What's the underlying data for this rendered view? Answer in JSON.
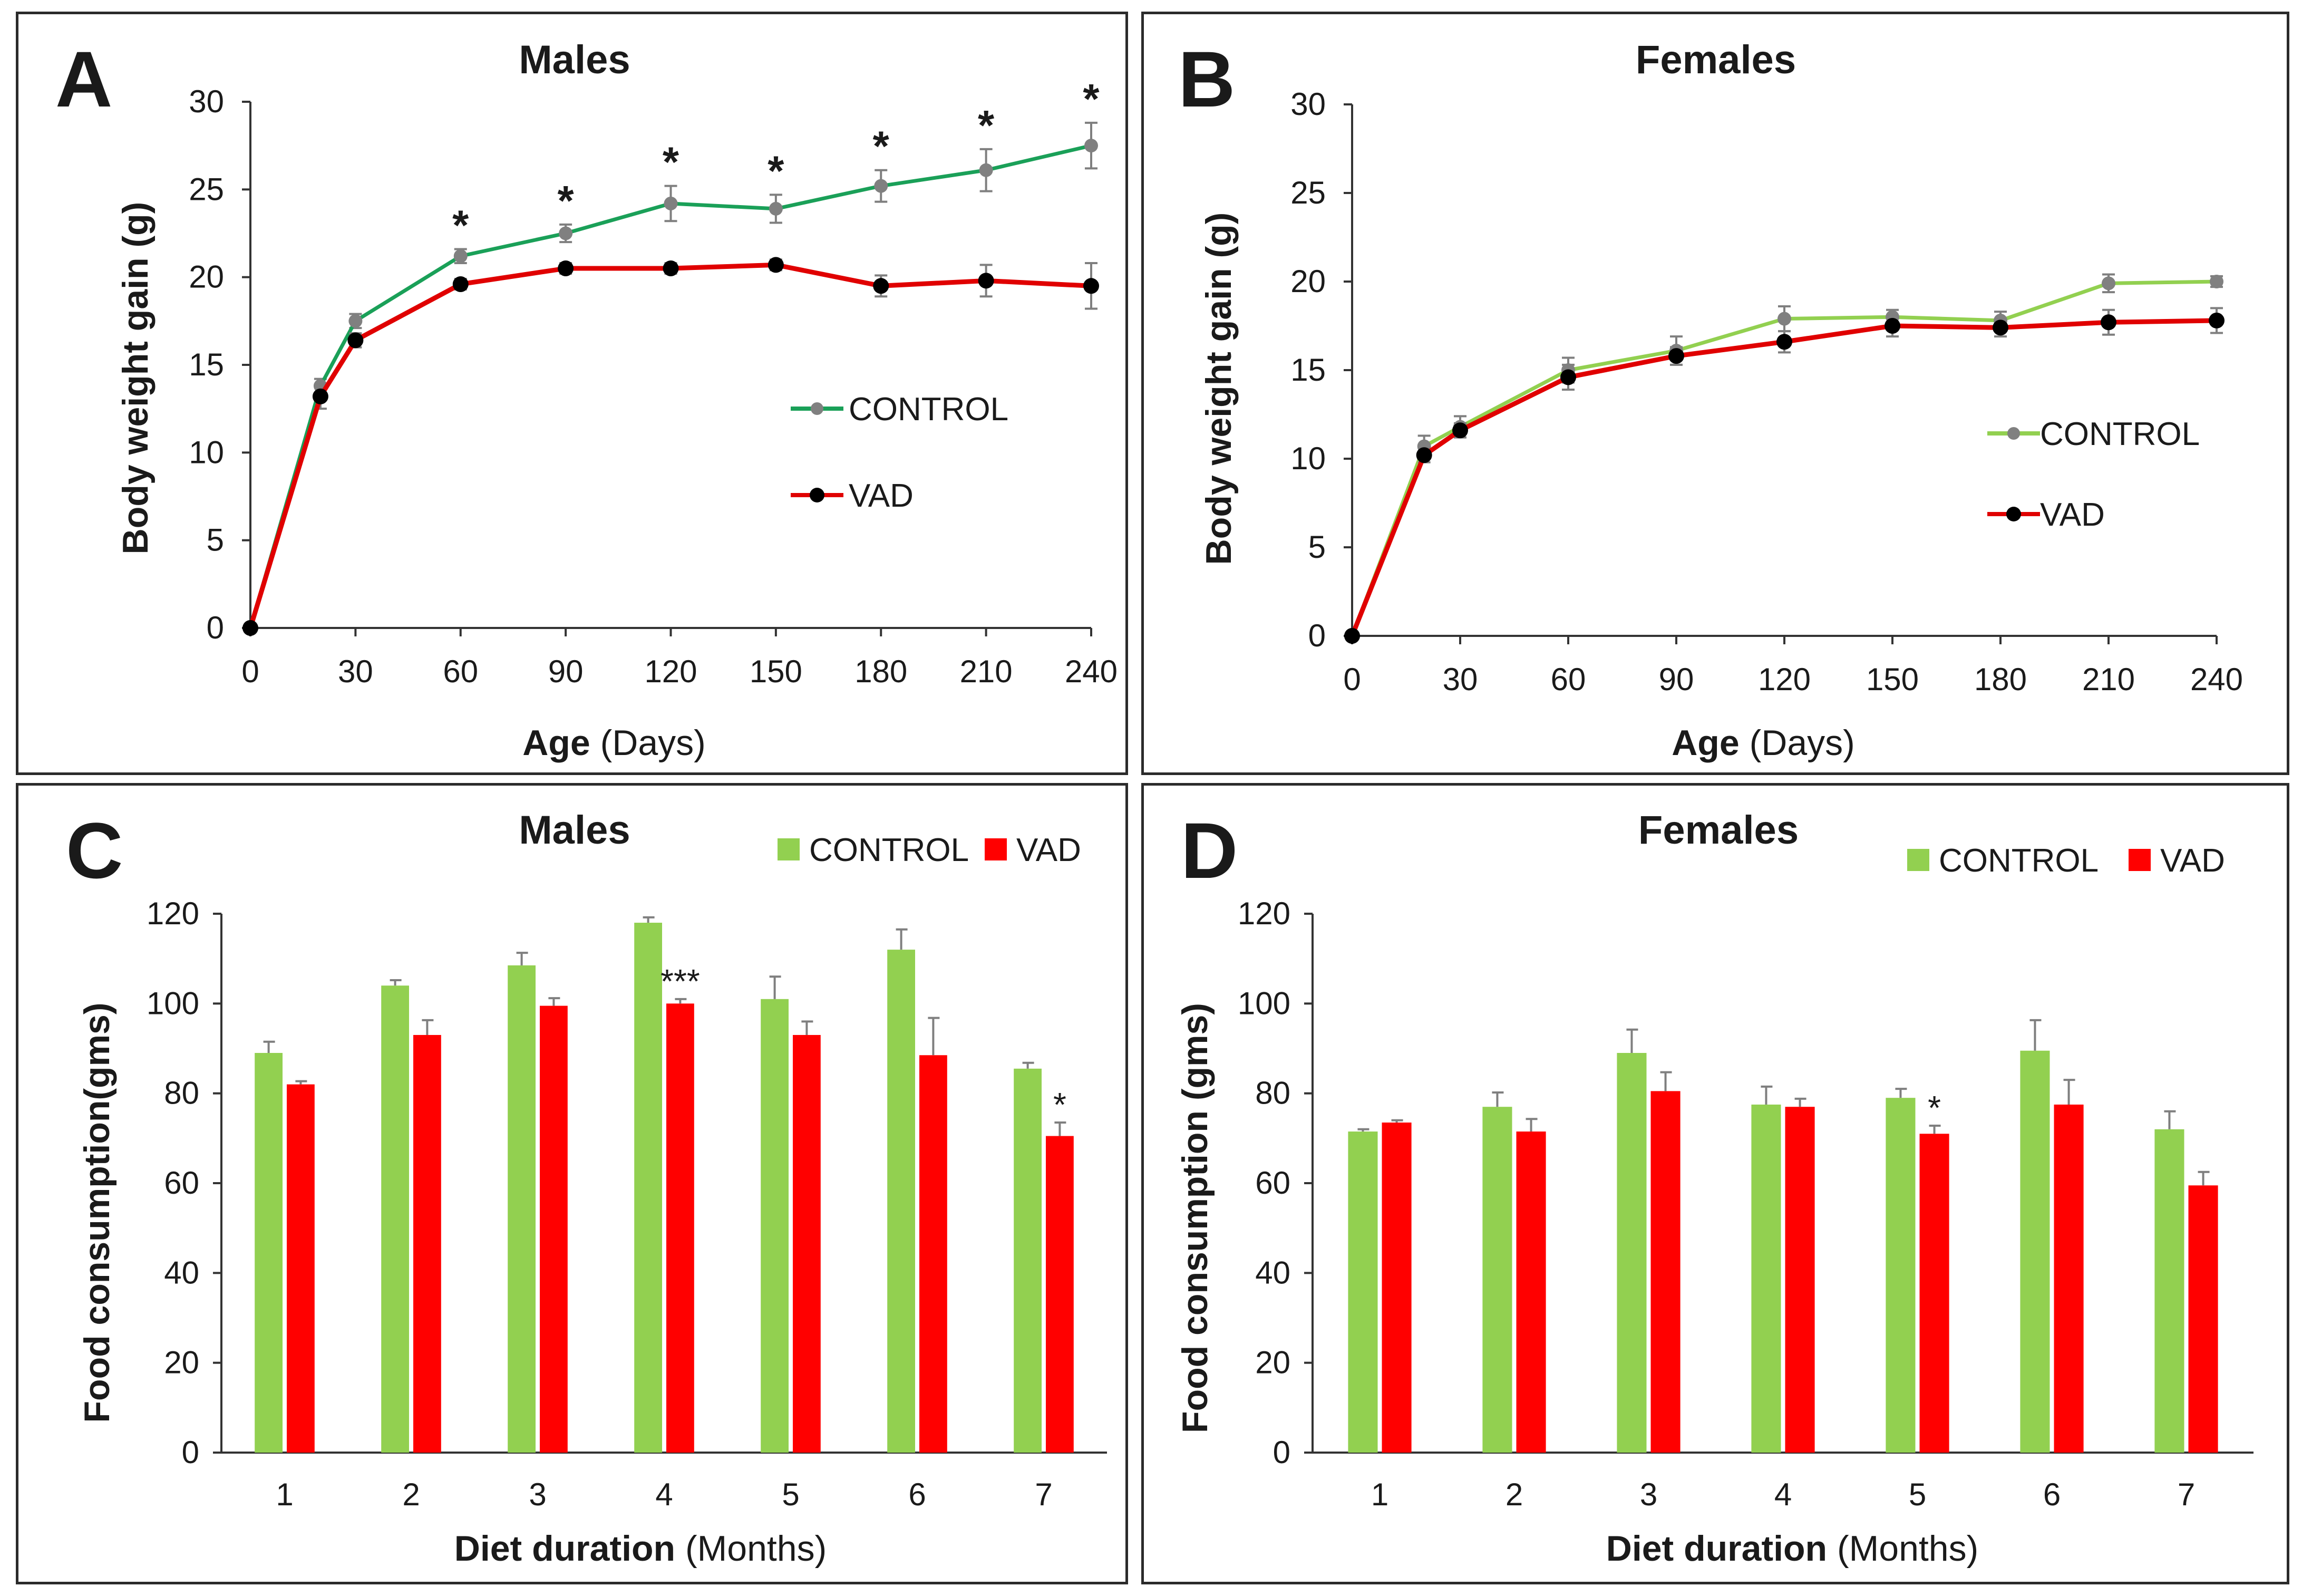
{
  "colors": {
    "control_line_A": "#1aa058",
    "control_line_B": "#92d050",
    "control_marker": "#808080",
    "vad_line": "#e00000",
    "vad_marker": "#000000",
    "control_bar": "#92d050",
    "vad_bar": "#ff0000",
    "error_bar": "#7f7f7f"
  },
  "chart_data": [
    {
      "id": "A",
      "type": "line",
      "panel_letter": "A",
      "title": "Males",
      "xlabel_bold": "Age",
      "xlabel_rest": " (Days)",
      "ylabel": "Body weight gain (g)",
      "x_ticks": [
        0,
        30,
        60,
        90,
        120,
        150,
        180,
        210,
        240
      ],
      "y_ticks": [
        0,
        5,
        10,
        15,
        20,
        25,
        30
      ],
      "xlim": [
        0,
        240
      ],
      "ylim": [
        0,
        30
      ],
      "x": [
        0,
        20,
        30,
        60,
        90,
        120,
        150,
        180,
        210,
        240
      ],
      "series": [
        {
          "name": "CONTROL",
          "values": [
            0,
            13.8,
            17.5,
            21.2,
            22.5,
            24.2,
            23.9,
            25.2,
            26.1,
            27.5
          ],
          "errors": [
            0,
            0.4,
            0.4,
            0.4,
            0.5,
            1.0,
            0.8,
            0.9,
            1.2,
            1.3
          ]
        },
        {
          "name": "VAD",
          "values": [
            0,
            13.2,
            16.4,
            19.6,
            20.5,
            20.5,
            20.7,
            19.5,
            19.8,
            19.5
          ],
          "errors": [
            0,
            0.7,
            0.4,
            0.3,
            0.3,
            0.3,
            0.3,
            0.6,
            0.9,
            1.3
          ]
        }
      ],
      "significance": [
        {
          "x": 60,
          "label": "*"
        },
        {
          "x": 90,
          "label": "*"
        },
        {
          "x": 120,
          "label": "*"
        },
        {
          "x": 150,
          "label": "*"
        },
        {
          "x": 180,
          "label": "*"
        },
        {
          "x": 210,
          "label": "*"
        },
        {
          "x": 240,
          "label": "*"
        }
      ],
      "legend": [
        "CONTROL",
        "VAD"
      ]
    },
    {
      "id": "B",
      "type": "line",
      "panel_letter": "B",
      "title": "Females",
      "xlabel_bold": "Age",
      "xlabel_rest": " (Days)",
      "ylabel": "Body weight gain (g)",
      "x_ticks": [
        0,
        30,
        60,
        90,
        120,
        150,
        180,
        210,
        240
      ],
      "y_ticks": [
        0,
        5,
        10,
        15,
        20,
        25,
        30
      ],
      "xlim": [
        0,
        240
      ],
      "ylim": [
        0,
        30
      ],
      "x": [
        0,
        20,
        30,
        60,
        90,
        120,
        150,
        180,
        210,
        240
      ],
      "series": [
        {
          "name": "CONTROL",
          "values": [
            0,
            10.7,
            11.8,
            15.0,
            16.1,
            17.9,
            18.0,
            17.8,
            19.9,
            20.0
          ],
          "errors": [
            0,
            0.6,
            0.6,
            0.7,
            0.8,
            0.7,
            0.4,
            0.5,
            0.5,
            0.3
          ]
        },
        {
          "name": "VAD",
          "values": [
            0,
            10.2,
            11.6,
            14.6,
            15.8,
            16.6,
            17.5,
            17.4,
            17.7,
            17.8
          ],
          "errors": [
            0,
            0.4,
            0.4,
            0.7,
            0.5,
            0.6,
            0.6,
            0.5,
            0.7,
            0.7
          ]
        }
      ],
      "significance": [],
      "legend": [
        "CONTROL",
        "VAD"
      ]
    },
    {
      "id": "C",
      "type": "bar",
      "panel_letter": "C",
      "title": "Males",
      "xlabel_bold": "Diet duration",
      "xlabel_rest": " (Months)",
      "ylabel": "Food consumption(gms)",
      "categories": [
        "1",
        "2",
        "3",
        "4",
        "5",
        "6",
        "7"
      ],
      "y_ticks": [
        0,
        20,
        40,
        60,
        80,
        100,
        120
      ],
      "ylim": [
        0,
        120
      ],
      "series": [
        {
          "name": "CONTROL",
          "values": [
            89,
            104,
            108.5,
            118,
            101,
            112,
            85.5
          ],
          "errors": [
            2.5,
            1.2,
            2.8,
            1.2,
            5.0,
            4.5,
            1.3
          ]
        },
        {
          "name": "VAD",
          "values": [
            82,
            93,
            99.5,
            100,
            93,
            88.5,
            70.5
          ],
          "errors": [
            0.7,
            3.3,
            1.7,
            1.0,
            3.0,
            8.3,
            3.0
          ]
        }
      ],
      "significance": [
        {
          "category": "4",
          "label": "***"
        },
        {
          "category": "7",
          "label": "*"
        }
      ],
      "legend": [
        "CONTROL",
        "VAD"
      ]
    },
    {
      "id": "D",
      "type": "bar",
      "panel_letter": "D",
      "title": "Females",
      "xlabel_bold": "Diet duration",
      "xlabel_rest": " (Months)",
      "ylabel": "Food consumption (gms)",
      "categories": [
        "1",
        "2",
        "3",
        "4",
        "5",
        "6",
        "7"
      ],
      "y_ticks": [
        0,
        20,
        40,
        60,
        80,
        100,
        120
      ],
      "ylim": [
        0,
        120
      ],
      "series": [
        {
          "name": "CONTROL",
          "values": [
            71.5,
            77,
            89,
            77.5,
            79,
            89.5,
            72
          ],
          "errors": [
            0.5,
            3.2,
            5.2,
            4.0,
            2.0,
            6.8,
            4.0
          ]
        },
        {
          "name": "VAD",
          "values": [
            73.5,
            71.5,
            80.5,
            77,
            71,
            77.5,
            59.5
          ],
          "errors": [
            0.5,
            2.8,
            4.2,
            1.8,
            1.8,
            5.5,
            3.0
          ]
        }
      ],
      "significance": [
        {
          "category": "5",
          "label": "*"
        }
      ],
      "legend": [
        "CONTROL",
        "VAD"
      ]
    }
  ]
}
